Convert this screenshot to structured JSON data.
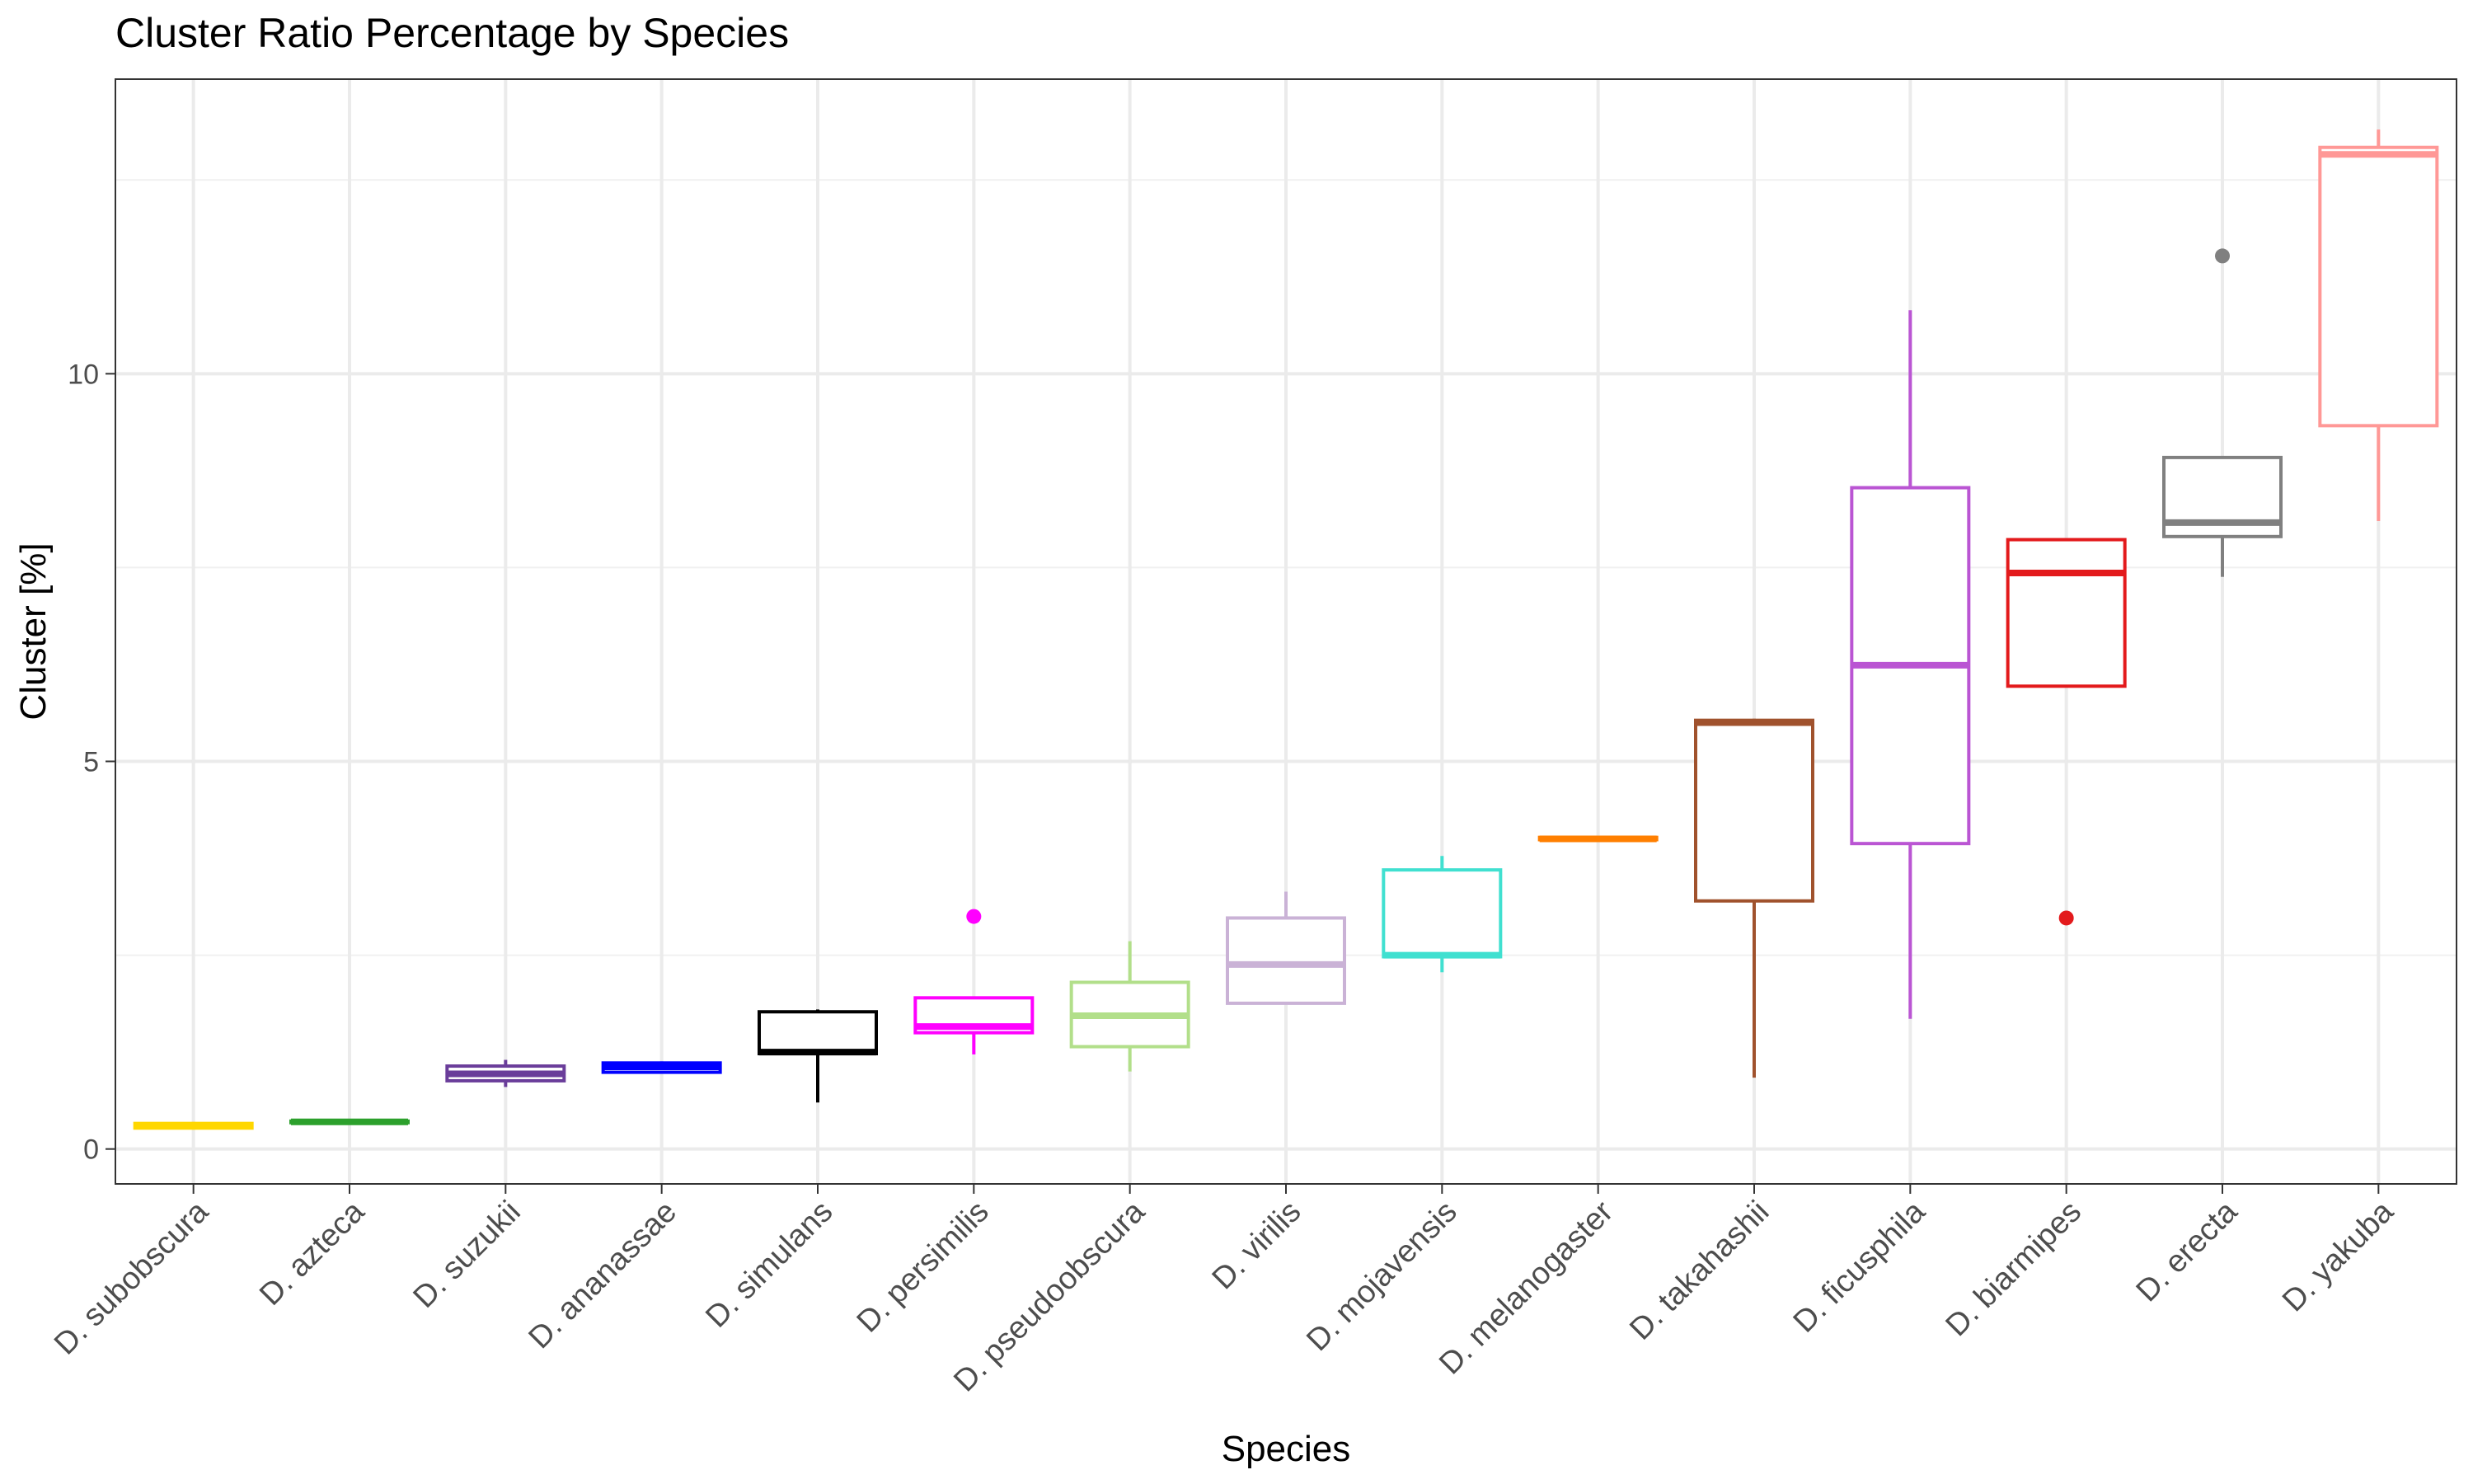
{
  "chart_data": {
    "type": "box",
    "title": "Cluster Ratio Percentage by Species",
    "xlabel": "Species",
    "ylabel": "Cluster [%]",
    "ylim": [
      -0.45,
      13.8
    ],
    "y_ticks": [
      0,
      5,
      10
    ],
    "grid": true,
    "legend": "none",
    "categories": [
      "D. subobscura",
      "D. azteca",
      "D. suzukii",
      "D. ananassae",
      "D. simulans",
      "D. persimilis",
      "D. pseudoobscura",
      "D. virilis",
      "D. mojavensis",
      "D. melanogaster",
      "D. takahashii",
      "D. ficusphila",
      "D. biarmipes",
      "D. erecta",
      "D. yakuba"
    ],
    "colors": [
      "#FFD700",
      "#2CA02C",
      "#6A3D9A",
      "#0000FF",
      "#000000",
      "#FF00FF",
      "#B2DF8A",
      "#CAB2D6",
      "#40E0D0",
      "#FF7F00",
      "#A0522D",
      "#BA55D3",
      "#E31A1C",
      "#808080",
      "#FF9896"
    ],
    "boxes": [
      {
        "whisker_low": 0.25,
        "q1": 0.27,
        "median": 0.3,
        "q3": 0.33,
        "whisker_high": 0.35,
        "outliers": []
      },
      {
        "whisker_low": 0.33,
        "q1": 0.34,
        "median": 0.35,
        "q3": 0.36,
        "whisker_high": 0.37,
        "outliers": []
      },
      {
        "whisker_low": 0.8,
        "q1": 0.88,
        "median": 0.97,
        "q3": 1.07,
        "whisker_high": 1.15,
        "outliers": []
      },
      {
        "whisker_low": 0.97,
        "q1": 0.99,
        "median": 1.06,
        "q3": 1.11,
        "whisker_high": 1.13,
        "outliers": []
      },
      {
        "whisker_low": 0.6,
        "q1": 1.23,
        "median": 1.25,
        "q3": 1.77,
        "whisker_high": 1.8,
        "outliers": []
      },
      {
        "whisker_low": 1.22,
        "q1": 1.5,
        "median": 1.58,
        "q3": 1.95,
        "whisker_high": 1.95,
        "outliers": [
          3.0
        ]
      },
      {
        "whisker_low": 1.0,
        "q1": 1.32,
        "median": 1.72,
        "q3": 2.15,
        "whisker_high": 2.68,
        "outliers": []
      },
      {
        "whisker_low": 1.88,
        "q1": 1.88,
        "median": 2.38,
        "q3": 2.98,
        "whisker_high": 3.32,
        "outliers": []
      },
      {
        "whisker_low": 2.28,
        "q1": 2.48,
        "median": 2.5,
        "q3": 3.6,
        "whisker_high": 3.78,
        "outliers": []
      },
      {
        "whisker_low": 3.98,
        "q1": 3.99,
        "median": 4.0,
        "q3": 4.02,
        "whisker_high": 4.03,
        "outliers": []
      },
      {
        "whisker_low": 0.92,
        "q1": 3.2,
        "median": 5.5,
        "q3": 5.53,
        "whisker_high": 5.55,
        "outliers": []
      },
      {
        "whisker_low": 1.68,
        "q1": 3.94,
        "median": 6.24,
        "q3": 8.53,
        "whisker_high": 10.82,
        "outliers": []
      },
      {
        "whisker_low": 5.97,
        "q1": 5.97,
        "median": 7.43,
        "q3": 7.86,
        "whisker_high": 7.86,
        "outliers": [
          2.98
        ]
      },
      {
        "whisker_low": 7.38,
        "q1": 7.9,
        "median": 8.08,
        "q3": 8.92,
        "whisker_high": 8.92,
        "outliers": [
          11.52
        ]
      },
      {
        "whisker_low": 8.1,
        "q1": 9.33,
        "median": 12.83,
        "q3": 12.92,
        "whisker_high": 13.15,
        "outliers": []
      }
    ]
  }
}
